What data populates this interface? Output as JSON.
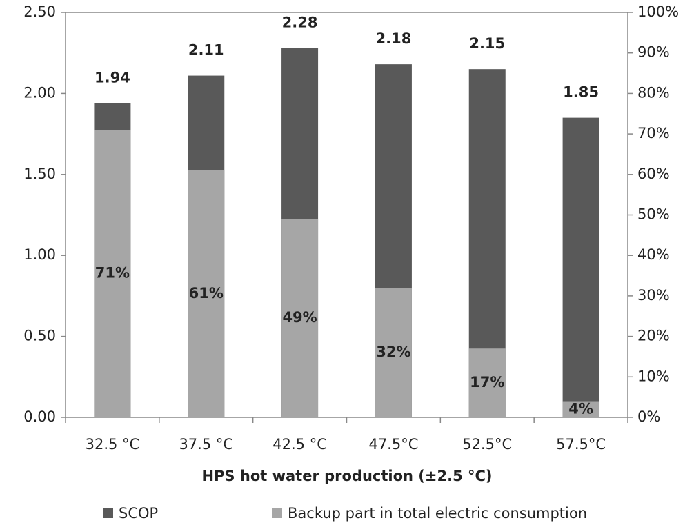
{
  "chart_data": {
    "type": "bar",
    "xlabel": "HPS hot water production (±2.5 °C)",
    "categories": [
      "32.5 °C",
      "37.5 °C",
      "42.5 °C",
      "47.5°C",
      "52.5°C",
      "57.5°C"
    ],
    "series": [
      {
        "name": "SCOP",
        "color": "#595959",
        "values": [
          1.94,
          2.11,
          2.28,
          2.18,
          2.15,
          1.85
        ]
      },
      {
        "name": "Backup part in total electric consumption",
        "color": "#a6a6a6",
        "axis": "y2",
        "values": [
          71,
          61,
          49,
          32,
          17,
          4
        ],
        "value_labels": [
          "71%",
          "61%",
          "49%",
          "32%",
          "17%",
          "4%"
        ]
      }
    ],
    "ylim": [
      0,
      2.5
    ],
    "yticks": [
      {
        "value": 0,
        "label": "0.00"
      },
      {
        "value": 0.5,
        "label": "0.50"
      },
      {
        "value": 1,
        "label": "1.00"
      },
      {
        "value": 1.5,
        "label": "1.50"
      },
      {
        "value": 2,
        "label": "2.00"
      },
      {
        "value": 2.5,
        "label": "2.50"
      }
    ],
    "y2lim": [
      0,
      100
    ],
    "y2ticks": [
      {
        "value": 0,
        "label": "0%"
      },
      {
        "value": 10,
        "label": "10%"
      },
      {
        "value": 20,
        "label": "20%"
      },
      {
        "value": 30,
        "label": "30%"
      },
      {
        "value": 40,
        "label": "40%"
      },
      {
        "value": 50,
        "label": "50%"
      },
      {
        "value": 60,
        "label": "60%"
      },
      {
        "value": 70,
        "label": "70%"
      },
      {
        "value": 80,
        "label": "80%"
      },
      {
        "value": 90,
        "label": "90%"
      },
      {
        "value": 100,
        "label": "100%"
      }
    ],
    "legend": "bottom"
  }
}
